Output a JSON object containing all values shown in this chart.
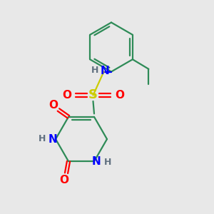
{
  "background_color": "#e8e8e8",
  "atom_colors": {
    "C": "#2e8b57",
    "N": "#0000ff",
    "O": "#ff0000",
    "S": "#cccc00",
    "H": "#607080"
  },
  "figsize": [
    3.0,
    3.0
  ],
  "dpi": 100
}
